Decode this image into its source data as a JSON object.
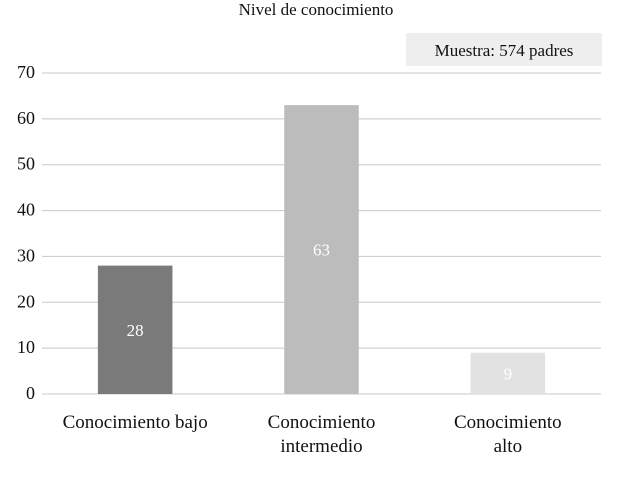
{
  "chart_data": {
    "type": "bar",
    "title": "Nivel de conocimiento",
    "annotation": "Muestra: 574 padres",
    "categories": [
      [
        "Conocimiento bajo"
      ],
      [
        "Conocimiento",
        "intermedio"
      ],
      [
        "Conocimiento",
        "alto"
      ]
    ],
    "values": [
      28,
      63,
      9
    ],
    "value_labels": [
      "28",
      "63",
      "9"
    ],
    "yticks": [
      "0",
      "10",
      "20",
      "30",
      "40",
      "50",
      "60",
      "70"
    ],
    "ylim": [
      0,
      70
    ],
    "grid": true,
    "colors": {
      "bars": [
        "#7a7a7a",
        "#bcbcbc",
        "#e2e2e2"
      ],
      "value_label": "#ffffff",
      "grid": "#c8c8c8",
      "annotation_bg": "#eeeeee"
    }
  }
}
